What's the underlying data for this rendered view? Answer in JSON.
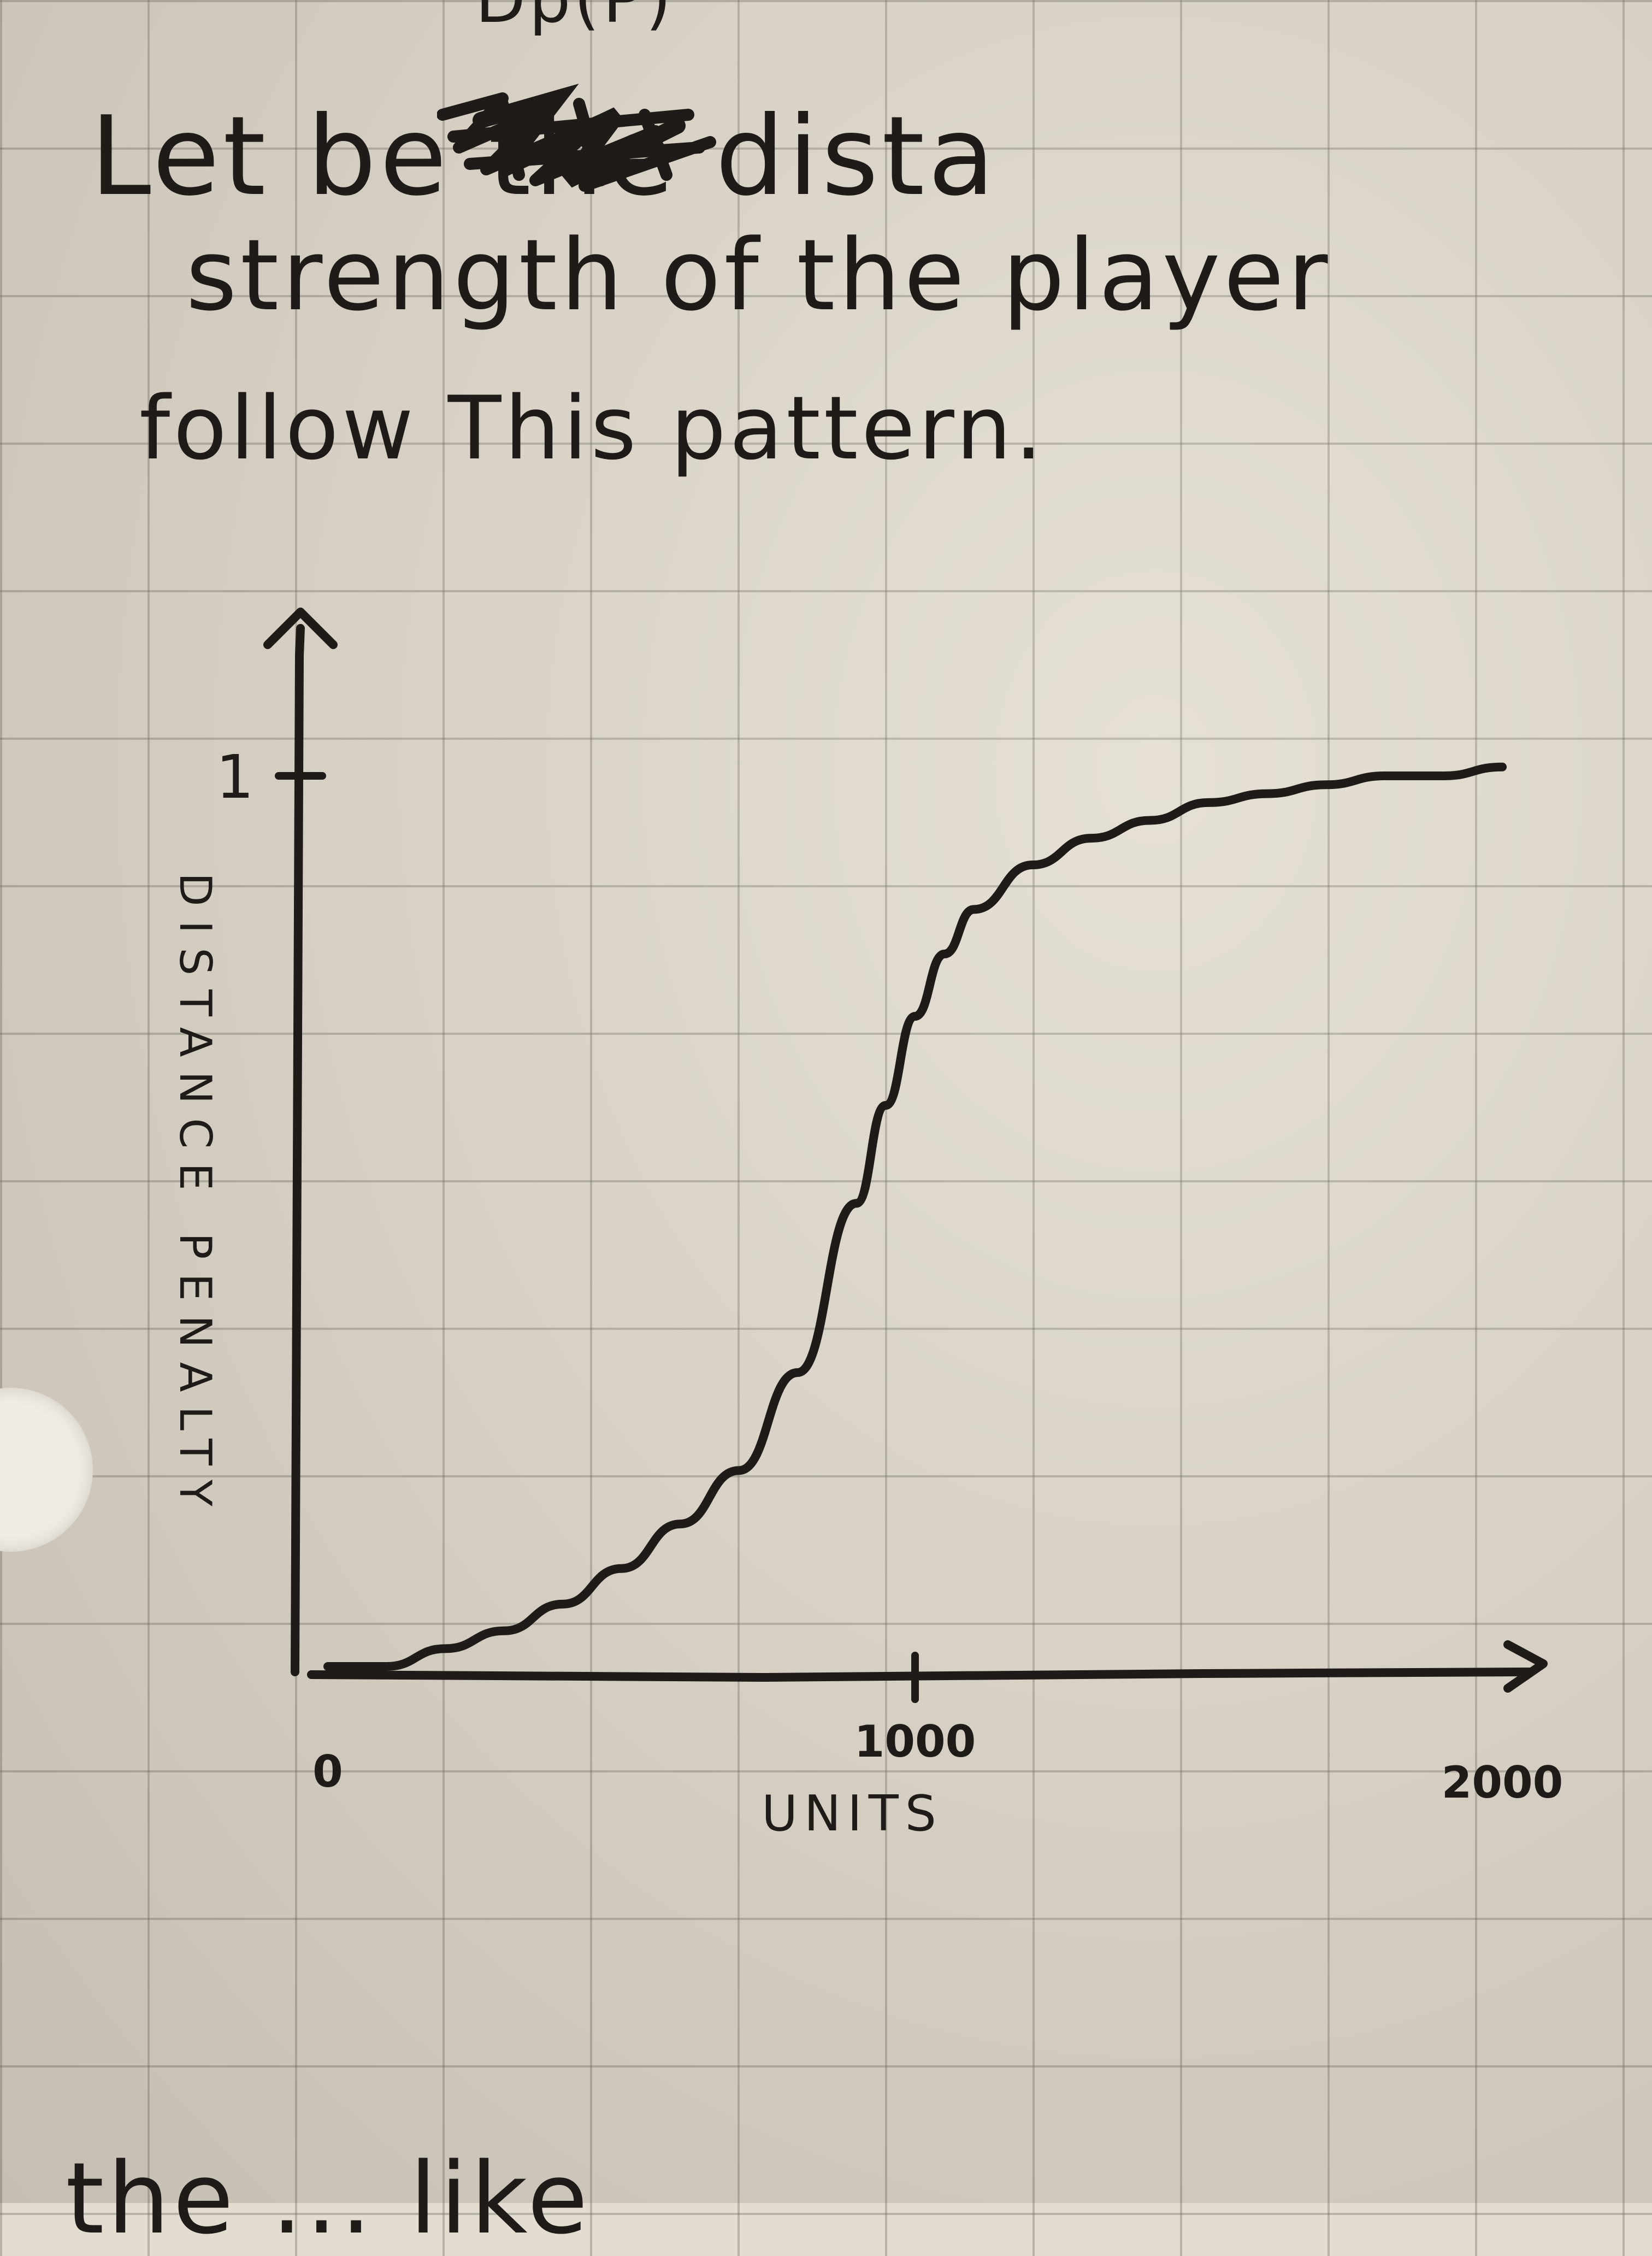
{
  "note": {
    "top_partial": "Dp(P)",
    "line1": "Let            be      the    dista",
    "line2": "strength    of    the player",
    "line3": "follow  This  pattern.",
    "bottom_partial": "the        ...   like"
  },
  "chart_data": {
    "type": "line",
    "title": "",
    "xlabel": "UNITS",
    "ylabel": "DISTANCE PENALTY",
    "xlim": [
      0,
      2000
    ],
    "ylim": [
      0,
      1
    ],
    "x_ticks": [
      "0",
      "1000",
      "2000"
    ],
    "y_ticks": [
      "1"
    ],
    "grid": false,
    "series": [
      {
        "x": [
          0,
          100,
          200,
          300,
          400,
          500,
          600,
          700,
          800,
          900,
          950,
          1000,
          1050,
          1100,
          1200,
          1300,
          1400,
          1500,
          1600,
          1700,
          1800,
          1900,
          2000
        ],
        "y": [
          0.0,
          0.0,
          0.02,
          0.04,
          0.07,
          0.11,
          0.16,
          0.22,
          0.33,
          0.52,
          0.63,
          0.73,
          0.8,
          0.85,
          0.9,
          0.93,
          0.95,
          0.97,
          0.98,
          0.99,
          1.0,
          1.0,
          1.01
        ]
      }
    ]
  }
}
